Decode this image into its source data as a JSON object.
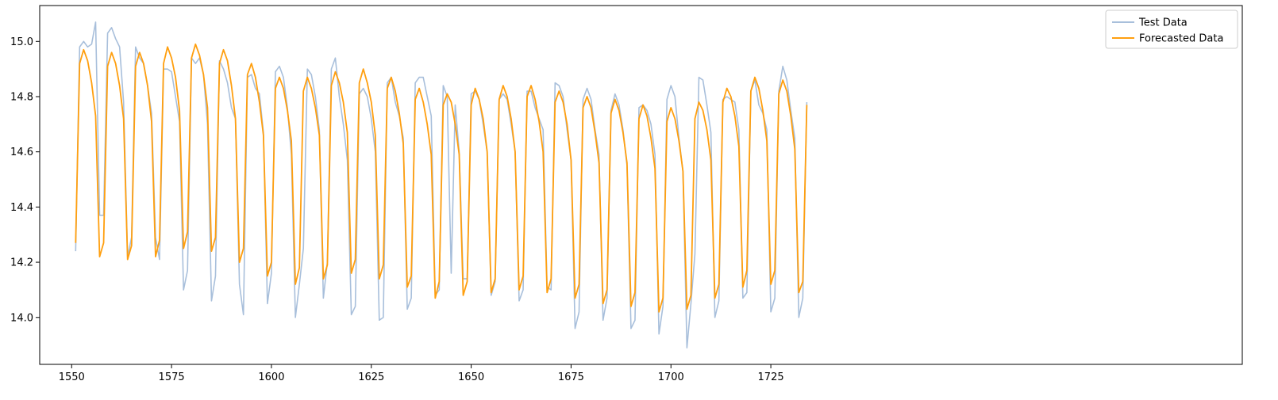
{
  "chart_data": {
    "type": "line",
    "title": "",
    "xlabel": "",
    "ylabel": "",
    "xlim": [
      1542,
      1843
    ],
    "ylim": [
      13.83,
      15.13
    ],
    "xticks": [
      1550,
      1575,
      1600,
      1625,
      1650,
      1675,
      1700,
      1725
    ],
    "xtick_labels": [
      "1550",
      "1575",
      "1600",
      "1625",
      "1650",
      "1675",
      "1700",
      "1725"
    ],
    "yticks": [
      14.0,
      14.2,
      14.4,
      14.6,
      14.8,
      15.0
    ],
    "ytick_labels": [
      "14.0",
      "14.2",
      "14.4",
      "14.6",
      "14.8",
      "15.0"
    ],
    "grid": false,
    "legend_position": "top-right",
    "x": [
      1551,
      1552,
      1553,
      1554,
      1555,
      1556,
      1557,
      1558,
      1559,
      1560,
      1561,
      1562,
      1563,
      1564,
      1565,
      1566,
      1567,
      1568,
      1569,
      1570,
      1571,
      1572,
      1573,
      1574,
      1575,
      1576,
      1577,
      1578,
      1579,
      1580,
      1581,
      1582,
      1583,
      1584,
      1585,
      1586,
      1587,
      1588,
      1589,
      1590,
      1591,
      1592,
      1593,
      1594,
      1595,
      1596,
      1597,
      1598,
      1599,
      1600,
      1601,
      1602,
      1603,
      1604,
      1605,
      1606,
      1607,
      1608,
      1609,
      1610,
      1611,
      1612,
      1613,
      1614,
      1615,
      1616,
      1617,
      1618,
      1619,
      1620,
      1621,
      1622,
      1623,
      1624,
      1625,
      1626,
      1627,
      1628,
      1629,
      1630,
      1631,
      1632,
      1633,
      1634,
      1635,
      1636,
      1637,
      1638,
      1639,
      1640,
      1641,
      1642,
      1643,
      1644,
      1645,
      1646,
      1647,
      1648,
      1649,
      1650,
      1651,
      1652,
      1653,
      1654,
      1655,
      1656,
      1657,
      1658,
      1659,
      1660,
      1661,
      1662,
      1663,
      1664,
      1665,
      1666,
      1667,
      1668,
      1669,
      1670,
      1671,
      1672,
      1673,
      1674,
      1675,
      1676,
      1677,
      1678,
      1679,
      1680,
      1681,
      1682,
      1683,
      1684,
      1685,
      1686,
      1687,
      1688,
      1689,
      1690,
      1691,
      1692,
      1693,
      1694,
      1695,
      1696,
      1697,
      1698,
      1699,
      1700,
      1701,
      1702,
      1703,
      1704,
      1705,
      1706,
      1707,
      1708,
      1709,
      1710,
      1711,
      1712,
      1713,
      1714,
      1715,
      1716,
      1717,
      1718,
      1719,
      1720,
      1721,
      1722,
      1723,
      1724,
      1725,
      1726,
      1727,
      1728,
      1729,
      1730,
      1731,
      1732,
      1733,
      1734
    ],
    "series": [
      {
        "name": "Test Data",
        "color": "#a8bfdb",
        "values": [
          14.24,
          14.98,
          15.0,
          14.98,
          14.99,
          15.07,
          14.37,
          14.37,
          15.03,
          15.05,
          15.01,
          14.98,
          14.78,
          14.22,
          14.29,
          14.98,
          14.94,
          14.92,
          14.84,
          14.74,
          14.29,
          14.21,
          14.9,
          14.9,
          14.89,
          14.8,
          14.71,
          14.1,
          14.17,
          14.94,
          14.92,
          14.94,
          14.88,
          14.7,
          14.06,
          14.15,
          14.93,
          14.9,
          14.85,
          14.76,
          14.72,
          14.12,
          14.01,
          14.87,
          14.88,
          14.83,
          14.81,
          14.67,
          14.05,
          14.16,
          14.89,
          14.91,
          14.87,
          14.76,
          14.59,
          14.0,
          14.12,
          14.25,
          14.9,
          14.88,
          14.8,
          14.68,
          14.07,
          14.2,
          14.9,
          14.94,
          14.8,
          14.7,
          14.57,
          14.01,
          14.04,
          14.81,
          14.83,
          14.8,
          14.72,
          14.6,
          13.99,
          14.0,
          14.85,
          14.87,
          14.78,
          14.73,
          14.65,
          14.03,
          14.07,
          14.85,
          14.87,
          14.87,
          14.8,
          14.73,
          14.08,
          14.1,
          14.84,
          14.8,
          14.16,
          14.77,
          14.6,
          14.14,
          14.14,
          14.81,
          14.82,
          14.79,
          14.7,
          14.6,
          14.08,
          14.13,
          14.79,
          14.81,
          14.79,
          14.7,
          14.6,
          14.06,
          14.1,
          14.82,
          14.82,
          14.76,
          14.72,
          14.68,
          14.11,
          14.1,
          14.85,
          14.84,
          14.8,
          14.68,
          14.57,
          13.96,
          14.02,
          14.79,
          14.83,
          14.79,
          14.68,
          14.59,
          13.99,
          14.07,
          14.75,
          14.81,
          14.77,
          14.68,
          14.55,
          13.96,
          13.99,
          14.76,
          14.77,
          14.75,
          14.7,
          14.59,
          13.94,
          14.04,
          14.79,
          14.84,
          14.8,
          14.65,
          14.53,
          13.89,
          14.05,
          14.23,
          14.87,
          14.86,
          14.77,
          14.67,
          14.0,
          14.06,
          14.79,
          14.8,
          14.79,
          14.78,
          14.68,
          14.07,
          14.09,
          14.82,
          14.86,
          14.77,
          14.74,
          14.68,
          14.02,
          14.07,
          14.82,
          14.91,
          14.86,
          14.75,
          14.65,
          14.0,
          14.07,
          14.78
        ]
      },
      {
        "name": "Forecasted Data",
        "color": "#ff9f0f",
        "values": [
          14.27,
          14.92,
          14.97,
          14.93,
          14.85,
          14.73,
          14.22,
          14.27,
          14.91,
          14.96,
          14.92,
          14.84,
          14.72,
          14.21,
          14.26,
          14.91,
          14.96,
          14.92,
          14.84,
          14.71,
          14.22,
          14.28,
          14.92,
          14.98,
          14.94,
          14.87,
          14.75,
          14.25,
          14.31,
          14.94,
          14.99,
          14.95,
          14.88,
          14.76,
          14.24,
          14.29,
          14.92,
          14.97,
          14.93,
          14.84,
          14.72,
          14.2,
          14.25,
          14.88,
          14.92,
          14.87,
          14.78,
          14.66,
          14.15,
          14.2,
          14.83,
          14.87,
          14.83,
          14.75,
          14.64,
          14.12,
          14.18,
          14.82,
          14.87,
          14.83,
          14.76,
          14.66,
          14.14,
          14.19,
          14.84,
          14.89,
          14.85,
          14.78,
          14.67,
          14.16,
          14.21,
          14.85,
          14.9,
          14.85,
          14.78,
          14.66,
          14.14,
          14.19,
          14.83,
          14.87,
          14.82,
          14.74,
          14.63,
          14.11,
          14.15,
          14.79,
          14.83,
          14.78,
          14.7,
          14.59,
          14.07,
          14.13,
          14.77,
          14.81,
          14.78,
          14.7,
          14.59,
          14.08,
          14.13,
          14.77,
          14.83,
          14.79,
          14.72,
          14.6,
          14.09,
          14.14,
          14.79,
          14.84,
          14.8,
          14.72,
          14.6,
          14.1,
          14.15,
          14.8,
          14.84,
          14.79,
          14.71,
          14.6,
          14.09,
          14.14,
          14.78,
          14.82,
          14.78,
          14.7,
          14.57,
          14.07,
          14.12,
          14.76,
          14.8,
          14.76,
          14.67,
          14.56,
          14.05,
          14.1,
          14.74,
          14.79,
          14.75,
          14.67,
          14.56,
          14.04,
          14.09,
          14.72,
          14.77,
          14.73,
          14.65,
          14.54,
          14.02,
          14.07,
          14.71,
          14.76,
          14.72,
          14.64,
          14.53,
          14.03,
          14.08,
          14.72,
          14.78,
          14.75,
          14.68,
          14.57,
          14.07,
          14.12,
          14.78,
          14.83,
          14.8,
          14.73,
          14.62,
          14.11,
          14.17,
          14.82,
          14.87,
          14.83,
          14.75,
          14.64,
          14.12,
          14.17,
          14.81,
          14.86,
          14.82,
          14.73,
          14.61,
          14.09,
          14.13,
          14.77
        ]
      }
    ]
  }
}
